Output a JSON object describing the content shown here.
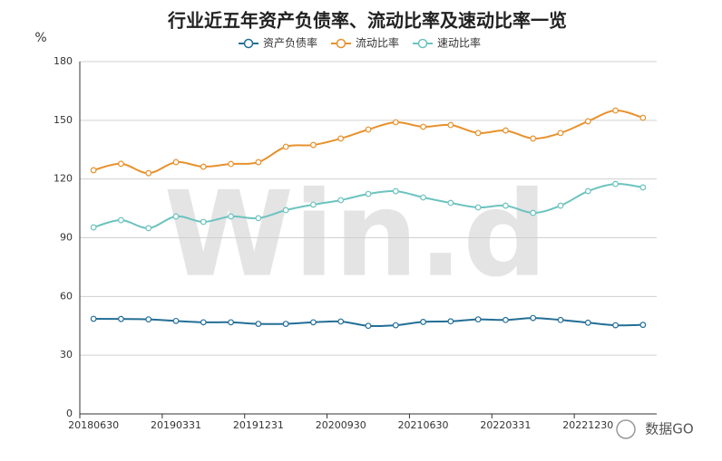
{
  "chart_data": {
    "type": "line",
    "title": "行业近五年资产负债率、流动比率及速动比率一览",
    "y_label": "%",
    "categories": [
      "20180630",
      null,
      null,
      "20190331",
      null,
      null,
      "20191231",
      null,
      null,
      "20200930",
      null,
      null,
      "20210630",
      null,
      null,
      "20220331",
      null,
      null,
      "20221230",
      null,
      null
    ],
    "series": [
      {
        "name": "资产负债率",
        "color": "#236e96",
        "values": [
          48.6,
          48.5,
          48.3,
          47.5,
          46.8,
          46.8,
          46.0,
          46.0,
          46.8,
          47.2,
          45.0,
          45.3,
          47.0,
          47.3,
          48.3,
          48.0,
          49.0,
          48.0,
          46.6,
          45.3,
          45.5
        ]
      },
      {
        "name": "流动比率",
        "color": "#e8912d",
        "values": [
          124.5,
          127.8,
          123.0,
          128.6,
          126.3,
          127.7,
          128.6,
          136.5,
          137.4,
          140.7,
          145.3,
          149.0,
          146.7,
          147.6,
          143.5,
          144.8,
          140.7,
          143.5,
          149.5,
          155.0,
          151.3
        ]
      },
      {
        "name": "速动比率",
        "color": "#6cc3bf",
        "values": [
          95.3,
          99.0,
          94.9,
          100.9,
          98.1,
          100.9,
          100.0,
          104.1,
          106.9,
          109.2,
          112.4,
          113.8,
          110.6,
          107.8,
          105.5,
          106.4,
          102.7,
          106.4,
          113.8,
          117.5,
          115.7
        ]
      }
    ],
    "ylim": [
      0,
      180
    ],
    "yticks": [
      0,
      30,
      60,
      90,
      120,
      150,
      180
    ],
    "grid": true,
    "legend": "top",
    "watermark": "Win.d",
    "footer": "数据GO"
  }
}
